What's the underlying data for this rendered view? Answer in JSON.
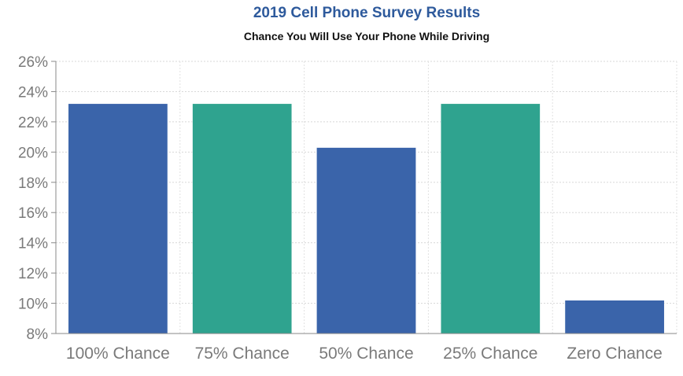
{
  "chart_data": {
    "type": "bar",
    "title": "2019 Cell Phone Survey Results",
    "subtitle": "Chance You Will Use Your Phone While Driving",
    "xlabel": "",
    "ylabel": "",
    "categories": [
      "100% Chance",
      "75% Chance",
      "50% Chance",
      "25% Chance",
      "Zero Chance"
    ],
    "values": [
      23.2,
      23.2,
      20.3,
      23.2,
      10.2
    ],
    "bar_colors": [
      "#3a64aa",
      "#2fa38f",
      "#3a64aa",
      "#2fa38f",
      "#3a64aa"
    ],
    "ylim": [
      8,
      26
    ],
    "yticks": [
      "8%",
      "10%",
      "12%",
      "14%",
      "16%",
      "18%",
      "20%",
      "22%",
      "24%",
      "26%"
    ],
    "ytick_values": [
      8,
      10,
      12,
      14,
      16,
      18,
      20,
      22,
      24,
      26
    ],
    "grid": true,
    "legend": "none"
  }
}
